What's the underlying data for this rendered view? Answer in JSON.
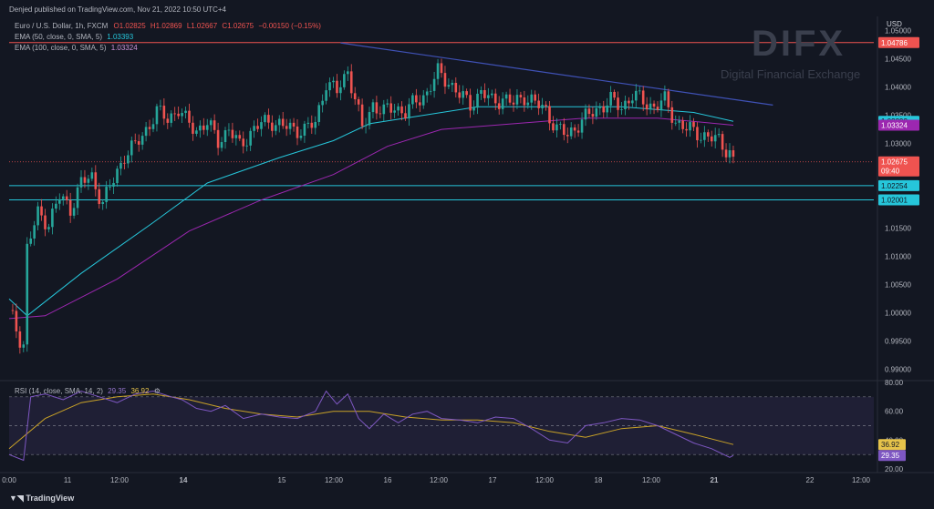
{
  "header": {
    "published": "Denjed published on TradingView.com, Nov 21, 2022 10:50 UTC+4"
  },
  "legend": {
    "title": "Euro / U.S. Dollar, 1h, FXCM",
    "ohlc": [
      "O1.02825",
      "H1.02869",
      "L1.02667",
      "C1.02675",
      "−0.00150 (−0.15%)"
    ],
    "ema50_label": "EMA (50, close, 0, SMA, 5)",
    "ema50_value": "1.03393",
    "ema100_label": "EMA (100, close, 0, SMA, 5)",
    "ema100_value": "1.03324",
    "rsi_label": "RSI (14, close, SMA, 14, 2)",
    "rsi_value": "29.35",
    "rsi_ma_value": "36.92"
  },
  "watermark": {
    "brand": "DIFX",
    "subtitle": "Digital Financial Exchange"
  },
  "footer": {
    "brand": "TradingView"
  },
  "axis": {
    "currency": "USD"
  },
  "colors": {
    "bg": "#131722",
    "up": "#26a69a",
    "down": "#ef5350",
    "ema50": "#26c6da",
    "ema100": "#9c27b0",
    "trend": "#3f51b5",
    "rsi": "#7e57c2",
    "rsi_ma": "#c9a227",
    "resistance": "#ef5350",
    "support": "#26c6da"
  },
  "chart_data": [
    {
      "type": "candlestick",
      "symbol": "EURUSD",
      "timeframe": "1h",
      "ylim": [
        0.9885,
        1.0525
      ],
      "yticks": [
        0.99,
        0.995,
        1.0,
        1.005,
        1.01,
        1.015,
        1.02,
        1.025,
        1.03,
        1.035,
        1.04,
        1.045,
        1.05
      ],
      "xticks": [
        "0:00",
        "11",
        "12:00",
        "14",
        "15",
        "12:00",
        "16",
        "12:00",
        "17",
        "12:00",
        "18",
        "12:00",
        "21",
        "22",
        "12:00"
      ],
      "close_path": [
        [
          0,
          1.0005
        ],
        [
          3,
          0.9955
        ],
        [
          4,
          0.9945
        ],
        [
          5,
          1.0115
        ],
        [
          8,
          1.0175
        ],
        [
          11,
          1.016
        ],
        [
          14,
          1.0205
        ],
        [
          17,
          1.0185
        ],
        [
          20,
          1.023
        ],
        [
          23,
          1.024
        ],
        [
          26,
          1.0195
        ],
        [
          29,
          1.0235
        ],
        [
          32,
          1.028
        ],
        [
          35,
          1.0295
        ],
        [
          38,
          1.0325
        ],
        [
          41,
          1.0355
        ],
        [
          44,
          1.0345
        ],
        [
          47,
          1.036
        ],
        [
          49,
          1.034
        ],
        [
          52,
          1.0325
        ],
        [
          55,
          1.0335
        ],
        [
          58,
          1.0305
        ],
        [
          61,
          1.0325
        ],
        [
          64,
          1.0295
        ],
        [
          67,
          1.032
        ],
        [
          70,
          1.0335
        ],
        [
          73,
          1.034
        ],
        [
          76,
          1.033
        ],
        [
          79,
          1.0325
        ],
        [
          82,
          1.0325
        ],
        [
          85,
          1.0335
        ],
        [
          88,
          1.041
        ],
        [
          91,
          1.039
        ],
        [
          94,
          1.043
        ],
        [
          96,
          1.038
        ],
        [
          98,
          1.0325
        ],
        [
          101,
          1.037
        ],
        [
          104,
          1.0355
        ],
        [
          107,
          1.0365
        ],
        [
          110,
          1.0355
        ],
        [
          113,
          1.0375
        ],
        [
          116,
          1.039
        ],
        [
          119,
          1.0425
        ],
        [
          122,
          1.041
        ],
        [
          125,
          1.0385
        ],
        [
          128,
          1.037
        ],
        [
          131,
          1.039
        ],
        [
          134,
          1.0375
        ],
        [
          137,
          1.038
        ],
        [
          140,
          1.037
        ],
        [
          143,
          1.0385
        ],
        [
          146,
          1.037
        ],
        [
          149,
          1.036
        ],
        [
          152,
          1.0325
        ],
        [
          155,
          1.0315
        ],
        [
          158,
          1.0335
        ],
        [
          161,
          1.035
        ],
        [
          164,
          1.0365
        ],
        [
          167,
          1.0375
        ],
        [
          170,
          1.0365
        ],
        [
          173,
          1.0385
        ],
        [
          176,
          1.0375
        ],
        [
          179,
          1.0365
        ],
        [
          182,
          1.0375
        ],
        [
          185,
          1.034
        ],
        [
          188,
          1.0325
        ],
        [
          191,
          1.032
        ],
        [
          194,
          1.031
        ],
        [
          197,
          1.0305
        ],
        [
          200,
          1.0285
        ],
        [
          201,
          1.02675
        ]
      ],
      "ema50_path": [
        [
          0,
          1.0025
        ],
        [
          5,
          0.9995
        ],
        [
          20,
          1.007
        ],
        [
          40,
          1.016
        ],
        [
          55,
          1.023
        ],
        [
          75,
          1.0275
        ],
        [
          90,
          1.0305
        ],
        [
          100,
          1.0335
        ],
        [
          115,
          1.035
        ],
        [
          130,
          1.0365
        ],
        [
          150,
          1.0365
        ],
        [
          170,
          1.0365
        ],
        [
          190,
          1.0355
        ],
        [
          201,
          1.03393
        ]
      ],
      "ema100_path": [
        [
          0,
          0.999
        ],
        [
          10,
          0.9995
        ],
        [
          30,
          1.006
        ],
        [
          50,
          1.0145
        ],
        [
          70,
          1.02
        ],
        [
          90,
          1.0245
        ],
        [
          105,
          1.0295
        ],
        [
          120,
          1.0325
        ],
        [
          140,
          1.0335
        ],
        [
          160,
          1.0345
        ],
        [
          180,
          1.0345
        ],
        [
          201,
          1.03324
        ]
      ],
      "trendline": [
        [
          92,
          1.0478
        ],
        [
          212,
          1.0368
        ]
      ],
      "horizontal_levels": [
        {
          "label": "1.04786",
          "value": 1.04786,
          "kind": "resistance"
        },
        {
          "label": "1.02254",
          "value": 1.02254,
          "kind": "support"
        },
        {
          "label": "1.02001",
          "value": 1.02001,
          "kind": "support"
        }
      ],
      "price_badges": [
        {
          "label": "1.03393",
          "value": 1.03393,
          "kind": "ema50"
        },
        {
          "label": "1.03324",
          "value": 1.03324,
          "kind": "ema100"
        },
        {
          "label": "1.02675",
          "value": 1.02675,
          "kind": "last",
          "time": "09:40"
        }
      ]
    },
    {
      "type": "line",
      "title": "RSI",
      "ylim": [
        20,
        80
      ],
      "yticks": [
        20,
        40,
        60,
        80
      ],
      "bands": [
        30,
        50,
        70
      ],
      "rsi_path": [
        [
          0,
          30
        ],
        [
          4,
          26
        ],
        [
          6,
          70
        ],
        [
          10,
          72
        ],
        [
          15,
          68
        ],
        [
          20,
          74
        ],
        [
          25,
          70
        ],
        [
          30,
          66
        ],
        [
          35,
          72
        ],
        [
          40,
          74
        ],
        [
          45,
          70
        ],
        [
          48,
          68
        ],
        [
          52,
          62
        ],
        [
          56,
          60
        ],
        [
          60,
          64
        ],
        [
          65,
          55
        ],
        [
          70,
          58
        ],
        [
          75,
          56
        ],
        [
          80,
          55
        ],
        [
          85,
          60
        ],
        [
          88,
          74
        ],
        [
          91,
          65
        ],
        [
          94,
          72
        ],
        [
          97,
          55
        ],
        [
          100,
          48
        ],
        [
          104,
          58
        ],
        [
          108,
          52
        ],
        [
          112,
          58
        ],
        [
          116,
          60
        ],
        [
          120,
          55
        ],
        [
          125,
          54
        ],
        [
          130,
          52
        ],
        [
          135,
          56
        ],
        [
          140,
          55
        ],
        [
          145,
          48
        ],
        [
          150,
          40
        ],
        [
          155,
          38
        ],
        [
          160,
          50
        ],
        [
          165,
          52
        ],
        [
          170,
          55
        ],
        [
          175,
          54
        ],
        [
          180,
          50
        ],
        [
          185,
          44
        ],
        [
          190,
          38
        ],
        [
          195,
          34
        ],
        [
          200,
          28
        ],
        [
          201,
          29.35
        ]
      ],
      "rsi_ma_path": [
        [
          0,
          34
        ],
        [
          10,
          55
        ],
        [
          20,
          66
        ],
        [
          30,
          70
        ],
        [
          40,
          72
        ],
        [
          50,
          68
        ],
        [
          60,
          62
        ],
        [
          70,
          58
        ],
        [
          80,
          56
        ],
        [
          90,
          60
        ],
        [
          100,
          60
        ],
        [
          110,
          56
        ],
        [
          120,
          54
        ],
        [
          130,
          54
        ],
        [
          140,
          52
        ],
        [
          150,
          46
        ],
        [
          160,
          42
        ],
        [
          170,
          48
        ],
        [
          180,
          50
        ],
        [
          190,
          44
        ],
        [
          201,
          36.92
        ]
      ]
    }
  ]
}
